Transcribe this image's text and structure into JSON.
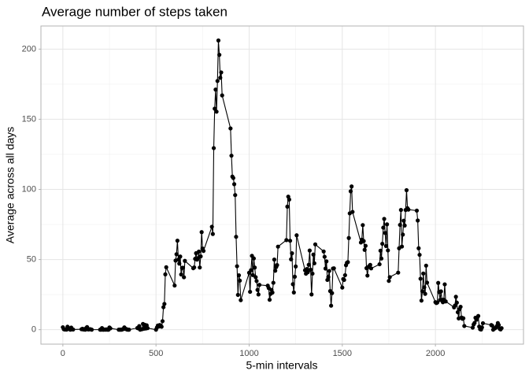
{
  "chart_data": {
    "type": "line",
    "title": "Average number of steps taken",
    "x_label": "5-min intervals",
    "y_label": "Average across all days",
    "x": [
      0,
      5,
      10,
      15,
      20,
      25,
      30,
      35,
      40,
      45,
      50,
      55,
      100,
      105,
      110,
      115,
      120,
      125,
      130,
      135,
      140,
      145,
      150,
      155,
      200,
      205,
      210,
      215,
      220,
      225,
      230,
      235,
      240,
      245,
      250,
      255,
      300,
      305,
      310,
      315,
      320,
      325,
      330,
      335,
      340,
      345,
      350,
      355,
      400,
      405,
      410,
      415,
      420,
      425,
      430,
      435,
      440,
      445,
      450,
      455,
      500,
      505,
      510,
      515,
      520,
      525,
      530,
      535,
      540,
      545,
      550,
      555,
      600,
      605,
      610,
      615,
      620,
      625,
      630,
      635,
      640,
      645,
      650,
      655,
      700,
      705,
      710,
      715,
      720,
      725,
      730,
      735,
      740,
      745,
      750,
      755,
      800,
      805,
      810,
      815,
      820,
      825,
      830,
      835,
      840,
      845,
      850,
      855,
      900,
      905,
      910,
      915,
      920,
      925,
      930,
      935,
      940,
      945,
      950,
      955,
      1000,
      1005,
      1010,
      1015,
      1020,
      1025,
      1030,
      1035,
      1040,
      1045,
      1050,
      1055,
      1100,
      1105,
      1110,
      1115,
      1120,
      1125,
      1130,
      1135,
      1140,
      1145,
      1150,
      1155,
      1200,
      1205,
      1210,
      1215,
      1220,
      1225,
      1230,
      1235,
      1240,
      1245,
      1250,
      1255,
      1300,
      1305,
      1310,
      1315,
      1320,
      1325,
      1330,
      1335,
      1340,
      1345,
      1350,
      1355,
      1400,
      1405,
      1410,
      1415,
      1420,
      1425,
      1430,
      1435,
      1440,
      1445,
      1450,
      1455,
      1500,
      1505,
      1510,
      1515,
      1520,
      1525,
      1530,
      1535,
      1540,
      1545,
      1550,
      1555,
      1600,
      1605,
      1610,
      1615,
      1620,
      1625,
      1630,
      1635,
      1640,
      1645,
      1650,
      1655,
      1700,
      1705,
      1710,
      1715,
      1720,
      1725,
      1730,
      1735,
      1740,
      1745,
      1750,
      1755,
      1800,
      1805,
      1810,
      1815,
      1820,
      1825,
      1830,
      1835,
      1840,
      1845,
      1850,
      1855,
      1900,
      1905,
      1910,
      1915,
      1920,
      1925,
      1930,
      1935,
      1940,
      1945,
      1950,
      1955,
      2000,
      2005,
      2010,
      2015,
      2020,
      2025,
      2030,
      2035,
      2040,
      2045,
      2050,
      2055,
      2100,
      2105,
      2110,
      2115,
      2120,
      2125,
      2130,
      2135,
      2140,
      2145,
      2150,
      2155,
      2200,
      2205,
      2210,
      2215,
      2220,
      2225,
      2230,
      2235,
      2240,
      2245,
      2250,
      2255,
      2300,
      2305,
      2310,
      2315,
      2320,
      2325,
      2330,
      2335,
      2340,
      2345,
      2350,
      2355
    ],
    "series": [
      {
        "color": "#000000",
        "values": [
          1.72,
          0.34,
          0.13,
          0.15,
          0.08,
          2.09,
          0.53,
          0.87,
          0,
          1.47,
          0.3,
          0.13,
          0.32,
          0.68,
          0.15,
          0.34,
          0,
          1.11,
          1.83,
          0.17,
          0.17,
          0.38,
          0.26,
          0,
          0,
          0,
          1.13,
          0,
          0,
          0.13,
          0,
          0.23,
          0,
          0,
          1.55,
          0.94,
          0,
          0,
          0,
          0,
          0.21,
          0.62,
          1.62,
          0.58,
          0.49,
          0.08,
          0,
          0,
          1.19,
          0.94,
          2.57,
          0,
          0.34,
          0.36,
          4.11,
          0.66,
          3.49,
          0.83,
          3.11,
          1.11,
          0,
          1.57,
          3.0,
          2.25,
          3.32,
          2.96,
          2.09,
          6.06,
          16.02,
          18.34,
          39.45,
          44.49,
          31.49,
          49.26,
          53.77,
          63.45,
          49.96,
          47.08,
          52.15,
          39.34,
          44.02,
          44.17,
          37.36,
          49.04,
          43.81,
          44.38,
          50.51,
          54.51,
          49.92,
          50.98,
          55.68,
          44.32,
          52.26,
          69.55,
          57.85,
          56.15,
          73.38,
          68.21,
          129.43,
          157.53,
          171.15,
          155.4,
          177.3,
          206.17,
          195.92,
          179.57,
          183.4,
          167.02,
          143.45,
          124.04,
          109.11,
          108.11,
          103.72,
          95.96,
          66.21,
          45.23,
          24.79,
          38.75,
          34.98,
          21.06,
          40.57,
          26.98,
          42.42,
          52.66,
          38.92,
          50.79,
          44.28,
          37.42,
          34.7,
          28.34,
          25.09,
          31.94,
          31.36,
          29.68,
          21.32,
          25.55,
          28.38,
          26.47,
          33.43,
          49.98,
          42.04,
          44.6,
          46.04,
          59.19,
          63.87,
          87.7,
          94.85,
          92.77,
          63.4,
          50.17,
          54.47,
          32.42,
          26.53,
          37.74,
          45.06,
          67.28,
          42.34,
          39.89,
          43.26,
          40.98,
          46.25,
          56.43,
          42.75,
          25.13,
          39.96,
          53.55,
          47.32,
          60.81,
          55.75,
          51.96,
          43.58,
          48.7,
          35.47,
          37.55,
          41.85,
          27.51,
          17.11,
          26.08,
          43.62,
          43.77,
          30.02,
          36.08,
          35.49,
          38.85,
          45.96,
          47.75,
          48.13,
          65.32,
          82.91,
          98.66,
          102.11,
          83.96,
          62.13,
          64.13,
          74.55,
          63.17,
          56.91,
          59.77,
          43.87,
          38.57,
          44.66,
          45.45,
          46.21,
          43.68,
          46.62,
          56.3,
          50.72,
          61.23,
          72.72,
          78.94,
          68.94,
          59.66,
          75.09,
          56.51,
          34.77,
          37.45,
          40.68,
          58.02,
          74.7,
          85.32,
          59.26,
          67.77,
          77.7,
          74.25,
          85.34,
          99.45,
          86.58,
          85.6,
          84.87,
          77.83,
          58.04,
          53.36,
          36.33,
          20.72,
          27.4,
          40.02,
          30.21,
          25.55,
          45.66,
          33.53,
          19.62,
          19.02,
          19.34,
          33.34,
          26.81,
          21.17,
          27.3,
          21.34,
          19.55,
          21.32,
          32.3,
          20.15,
          15.94,
          17.23,
          23.45,
          19.25,
          12.45,
          8.02,
          14.66,
          16.3,
          8.68,
          7.79,
          8.13,
          2.62,
          1.45,
          3.68,
          4.81,
          8.51,
          7.08,
          8.7,
          9.75,
          2.21,
          0.32,
          0.11,
          1.6,
          4.6,
          3.3,
          2.85,
          0,
          0.83,
          0.96,
          1.58,
          2.6,
          4.7,
          3.3,
          0.64,
          0.23,
          1.08
        ]
      }
    ],
    "xlim": [
      -117.75,
      2472.75
    ],
    "ylim": [
      -10.31,
      216.48
    ],
    "xticks": [
      0,
      500,
      1000,
      1500,
      2000
    ],
    "yticks": [
      0,
      50,
      100,
      150,
      200
    ],
    "x_minor_grid": [
      250,
      750,
      1250,
      1750,
      2250
    ],
    "y_minor_grid": [
      25,
      75,
      125,
      175
    ],
    "grid": true
  }
}
